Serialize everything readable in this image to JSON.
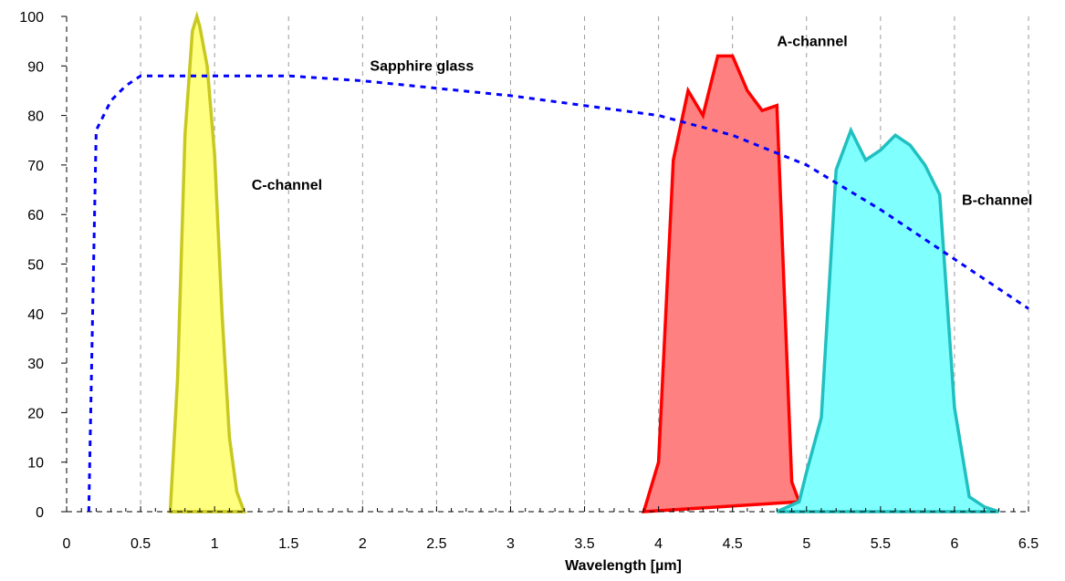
{
  "chart_data": {
    "type": "area",
    "xlabel": "Wavelength [µm]",
    "ylabel": "",
    "xlim": [
      0,
      6.5
    ],
    "ylim": [
      0,
      100
    ],
    "x_ticks": [
      "0",
      "0.5",
      "1",
      "1.5",
      "2",
      "2.5",
      "3",
      "3.5",
      "4",
      "4.5",
      "5",
      "5.5",
      "6",
      "6.5"
    ],
    "y_ticks": [
      "0",
      "10",
      "20",
      "30",
      "40",
      "50",
      "60",
      "70",
      "80",
      "90",
      "100"
    ],
    "grid": {
      "x": true,
      "y": false
    },
    "series": [
      {
        "name": "C-channel",
        "style": "filled",
        "color": "#c8c820",
        "fill": "#ffff80",
        "points": [
          [
            0.7,
            0
          ],
          [
            0.75,
            27
          ],
          [
            0.8,
            76
          ],
          [
            0.85,
            97
          ],
          [
            0.88,
            100
          ],
          [
            0.9,
            98
          ],
          [
            0.95,
            90
          ],
          [
            1.0,
            72
          ],
          [
            1.05,
            40
          ],
          [
            1.1,
            15
          ],
          [
            1.15,
            4
          ],
          [
            1.2,
            0
          ]
        ]
      },
      {
        "name": "A-channel",
        "style": "filled",
        "color": "#ff0000",
        "fill": "#ff8080",
        "points": [
          [
            3.9,
            0
          ],
          [
            4.0,
            10
          ],
          [
            4.1,
            71
          ],
          [
            4.2,
            85
          ],
          [
            4.3,
            80
          ],
          [
            4.4,
            92
          ],
          [
            4.5,
            92
          ],
          [
            4.6,
            85
          ],
          [
            4.7,
            81
          ],
          [
            4.8,
            82
          ],
          [
            4.9,
            6
          ],
          [
            4.95,
            2
          ]
        ]
      },
      {
        "name": "B-channel",
        "style": "filled",
        "color": "#20c0c0",
        "fill": "#80ffff",
        "points": [
          [
            4.8,
            0
          ],
          [
            4.95,
            2
          ],
          [
            5.0,
            8
          ],
          [
            5.1,
            19
          ],
          [
            5.2,
            69
          ],
          [
            5.3,
            77
          ],
          [
            5.4,
            71
          ],
          [
            5.5,
            73
          ],
          [
            5.6,
            76
          ],
          [
            5.7,
            74
          ],
          [
            5.8,
            70
          ],
          [
            5.9,
            64
          ],
          [
            6.0,
            21
          ],
          [
            6.1,
            3
          ],
          [
            6.2,
            1
          ],
          [
            6.3,
            0
          ]
        ]
      },
      {
        "name": "Sapphire glass",
        "style": "dashed",
        "color": "#0000ff",
        "points": [
          [
            0.15,
            0
          ],
          [
            0.2,
            77
          ],
          [
            0.3,
            83
          ],
          [
            0.4,
            86
          ],
          [
            0.5,
            88
          ],
          [
            1.0,
            88
          ],
          [
            1.5,
            88
          ],
          [
            2.0,
            87
          ],
          [
            3.0,
            84
          ],
          [
            4.0,
            80
          ],
          [
            4.5,
            76
          ],
          [
            5.0,
            70
          ],
          [
            5.5,
            61
          ],
          [
            6.0,
            51
          ],
          [
            6.5,
            41
          ]
        ]
      }
    ],
    "annotations": [
      {
        "text": "C-channel",
        "series": "C-channel",
        "x": 1.25,
        "y": 65
      },
      {
        "text": "A-channel",
        "series": "A-channel",
        "x": 4.8,
        "y": 94
      },
      {
        "text": "B-channel",
        "series": "B-channel",
        "x": 6.05,
        "y": 62
      },
      {
        "text": "Sapphire glass",
        "series": "Sapphire glass",
        "x": 2.05,
        "y": 89
      }
    ]
  }
}
